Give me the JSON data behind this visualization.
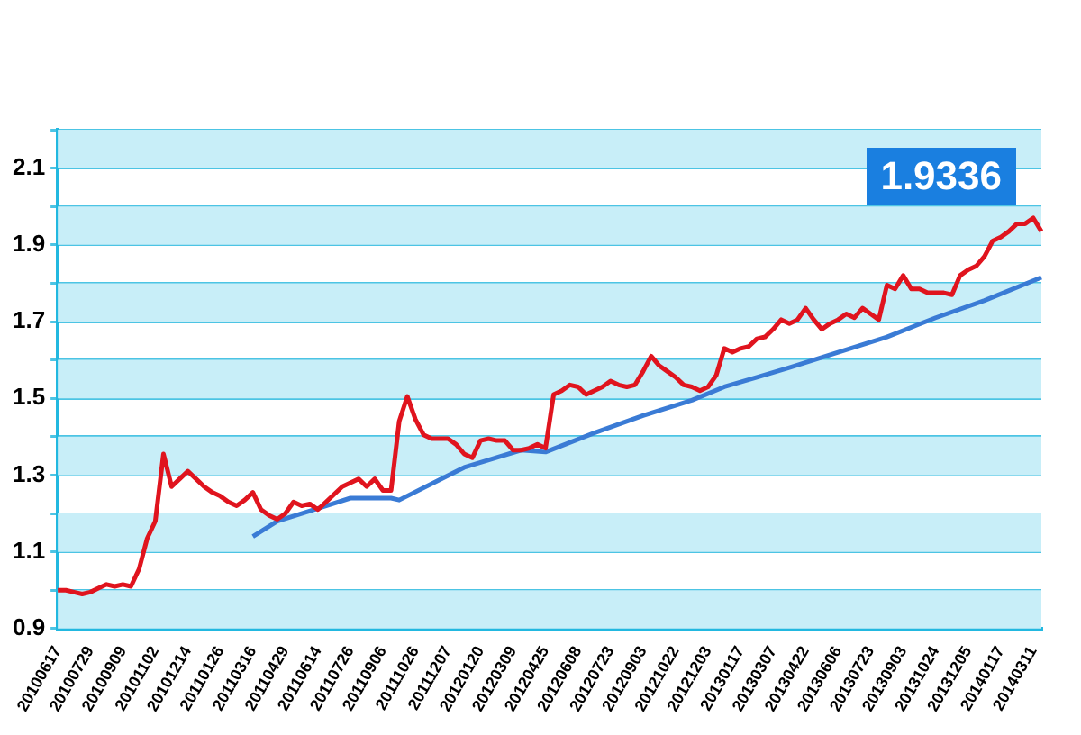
{
  "chart_data": {
    "type": "line",
    "categories": [
      "20100617",
      null,
      null,
      null,
      "20100729",
      null,
      null,
      null,
      "20100909",
      null,
      null,
      null,
      "20101102",
      null,
      null,
      null,
      "20101214",
      null,
      null,
      null,
      "20110126",
      null,
      null,
      null,
      "20110316",
      null,
      null,
      null,
      "20110429",
      null,
      null,
      null,
      "20110614",
      null,
      null,
      null,
      "20110726",
      null,
      null,
      null,
      "20110906",
      null,
      null,
      null,
      "20111026",
      null,
      null,
      null,
      "20111207",
      null,
      null,
      null,
      "20120120",
      null,
      null,
      null,
      "20120309",
      null,
      null,
      null,
      "20120425",
      null,
      null,
      null,
      "20120608",
      null,
      null,
      null,
      "20120723",
      null,
      null,
      null,
      "20120903",
      null,
      null,
      null,
      "20121022",
      null,
      null,
      null,
      "20121203",
      null,
      null,
      null,
      "20130117",
      null,
      null,
      null,
      "20130307",
      null,
      null,
      null,
      "20130422",
      null,
      null,
      null,
      "20130606",
      null,
      null,
      null,
      "20130723",
      null,
      null,
      null,
      "20130903",
      null,
      null,
      null,
      "20131024",
      null,
      null,
      null,
      "20131205",
      null,
      null,
      null,
      "20140117",
      null,
      null,
      null,
      "20140311",
      null
    ],
    "series": [
      {
        "color": "#e0141e",
        "values": [
          1.0,
          1.0,
          0.995,
          0.99,
          0.995,
          1.005,
          1.015,
          1.01,
          1.015,
          1.01,
          1.055,
          1.135,
          1.18,
          1.355,
          1.27,
          1.29,
          1.31,
          1.29,
          1.27,
          1.255,
          1.245,
          1.23,
          1.22,
          1.235,
          1.255,
          1.21,
          1.195,
          1.185,
          1.2,
          1.23,
          1.22,
          1.225,
          1.21,
          1.23,
          1.25,
          1.27,
          1.28,
          1.29,
          1.27,
          1.29,
          1.26,
          1.26,
          1.44,
          1.505,
          1.445,
          1.405,
          1.395,
          1.395,
          1.395,
          1.38,
          1.355,
          1.345,
          1.39,
          1.395,
          1.39,
          1.39,
          1.365,
          1.365,
          1.37,
          1.38,
          1.37,
          1.51,
          1.52,
          1.535,
          1.53,
          1.51,
          1.52,
          1.53,
          1.545,
          1.535,
          1.53,
          1.535,
          1.57,
          1.61,
          1.585,
          1.57,
          1.555,
          1.535,
          1.53,
          1.52,
          1.53,
          1.56,
          1.63,
          1.62,
          1.63,
          1.635,
          1.655,
          1.66,
          1.68,
          1.705,
          1.695,
          1.705,
          1.735,
          1.705,
          1.68,
          1.695,
          1.705,
          1.72,
          1.71,
          1.735,
          1.72,
          1.705,
          1.795,
          1.785,
          1.82,
          1.785,
          1.785,
          1.775,
          1.775,
          1.775,
          1.77,
          1.82,
          1.835,
          1.845,
          1.87,
          1.91,
          1.92,
          1.935,
          1.955,
          1.955,
          1.97,
          1.935
        ]
      },
      {
        "color": "#3a7bd5",
        "values": [
          null,
          null,
          null,
          null,
          null,
          null,
          null,
          null,
          null,
          null,
          null,
          null,
          null,
          null,
          null,
          null,
          null,
          null,
          null,
          null,
          null,
          null,
          null,
          null,
          1.14,
          null,
          null,
          1.18,
          null,
          null,
          null,
          null,
          null,
          1.22,
          null,
          null,
          1.24,
          null,
          null,
          null,
          null,
          1.24,
          1.235,
          null,
          null,
          null,
          null,
          null,
          null,
          null,
          1.32,
          null,
          null,
          null,
          null,
          null,
          null,
          1.365,
          null,
          null,
          1.36,
          null,
          null,
          null,
          null,
          null,
          1.41,
          null,
          null,
          null,
          null,
          null,
          1.455,
          null,
          null,
          null,
          null,
          null,
          1.495,
          null,
          null,
          null,
          1.53,
          null,
          null,
          null,
          1.555,
          null,
          null,
          null,
          1.58,
          null,
          null,
          null,
          null,
          null,
          1.62,
          null,
          null,
          null,
          null,
          null,
          1.66,
          null,
          null,
          null,
          null,
          null,
          1.71,
          null,
          null,
          null,
          null,
          null,
          1.755,
          null,
          null,
          null,
          null,
          null,
          null,
          1.815
        ]
      }
    ],
    "ylim": [
      0.9,
      2.2
    ],
    "yticks": [
      0.9,
      {
        "value": 1.0,
        "label": null
      },
      1.1,
      {
        "value": 1.2,
        "label": null
      },
      1.3,
      {
        "value": 1.4,
        "label": null
      },
      1.5,
      {
        "value": 1.6,
        "label": null
      },
      1.7,
      {
        "value": 1.8,
        "label": null
      },
      1.9,
      {
        "value": 2.0,
        "label": null
      },
      2.1,
      {
        "value": 2.2,
        "label": null
      }
    ],
    "bands": [
      {
        "axis": "y",
        "from": 0.9,
        "to": 1.0,
        "color": "#c8eef8"
      },
      {
        "axis": "y",
        "from": 1.1,
        "to": 1.2,
        "color": "#c8eef8"
      },
      {
        "axis": "y",
        "from": 1.3,
        "to": 1.4,
        "color": "#c8eef8"
      },
      {
        "axis": "y",
        "from": 1.5,
        "to": 1.6,
        "color": "#c8eef8"
      },
      {
        "axis": "y",
        "from": 1.7,
        "to": 1.8,
        "color": "#c8eef8"
      },
      {
        "axis": "y",
        "from": 1.9,
        "to": 2.0,
        "color": "#c8eef8"
      },
      {
        "axis": "y",
        "from": 2.1,
        "to": 2.2,
        "color": "#c8eef8"
      }
    ],
    "grid": "y",
    "marker": "none",
    "line_style": "solid",
    "legend": false,
    "annotations": [
      "1.9336"
    ]
  }
}
